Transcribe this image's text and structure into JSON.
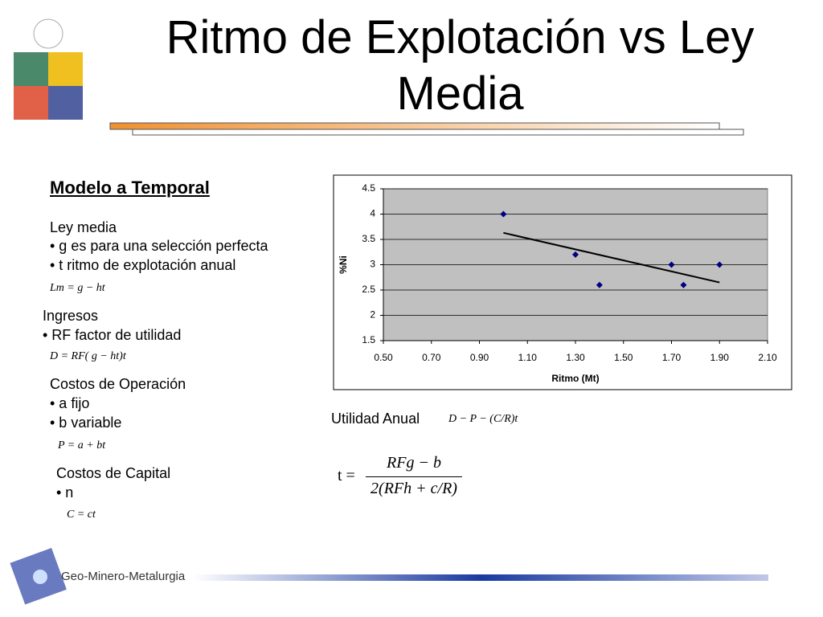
{
  "slide": {
    "title": "Ritmo de Explotación vs Ley Media",
    "heading": "Modelo a Temporal",
    "ley_media": [
      "Ley media",
      "• g es para una selección perfecta",
      "• t ritmo de explotación anual"
    ],
    "ley_formula": "Lm = g − ht",
    "ingresos": [
      "Ingresos",
      "• RF factor de utilidad"
    ],
    "ingresos_formula": "D = RF( g − ht)t",
    "costos_operacion": [
      "Costos de Operación",
      "• a fijo",
      "• b variable"
    ],
    "operacion_formula": "P = a + bt",
    "costos_capital": [
      "Costos de Capital",
      "• n"
    ],
    "capital_formula": "C = ct",
    "utilidad_label": "Utilidad Anual",
    "utilidad_formula": "D − P − (C/R)t",
    "t_formula": {
      "lhs": "t =",
      "numerator": "RFg − b",
      "denominator": "2(RFh + c/R)"
    },
    "footer": "Geo-Minero-Metalurgia"
  },
  "chart_data": {
    "type": "scatter",
    "x_label": "Ritmo (Mt)",
    "y_label": "%Ni",
    "x": [
      1.0,
      1.3,
      1.4,
      1.7,
      1.75,
      1.9
    ],
    "values": [
      4,
      3.2,
      2.6,
      3,
      2.6,
      3
    ],
    "color": "#000080",
    "trendline": {
      "x": [
        1.0,
        1.9
      ],
      "values": [
        3.63,
        2.65
      ],
      "color": "#000000"
    },
    "xlim": [
      0.5,
      2.1
    ],
    "xticks": [
      {
        "value": 0.5,
        "label": "0.50"
      },
      {
        "value": 0.7,
        "label": "0.70"
      },
      {
        "value": 0.9,
        "label": "0.90"
      },
      {
        "value": 1.1,
        "label": "1.10"
      },
      {
        "value": 1.3,
        "label": "1.30"
      },
      {
        "value": 1.5,
        "label": "1.50"
      },
      {
        "value": 1.7,
        "label": "1.70"
      },
      {
        "value": 1.9,
        "label": "1.90"
      },
      {
        "value": 2.1,
        "label": "2.10"
      }
    ],
    "ylim": [
      1.5,
      4.5
    ],
    "yticks": [
      1.5,
      2,
      2.5,
      3,
      3.5,
      4,
      4.5
    ],
    "grid": true
  }
}
